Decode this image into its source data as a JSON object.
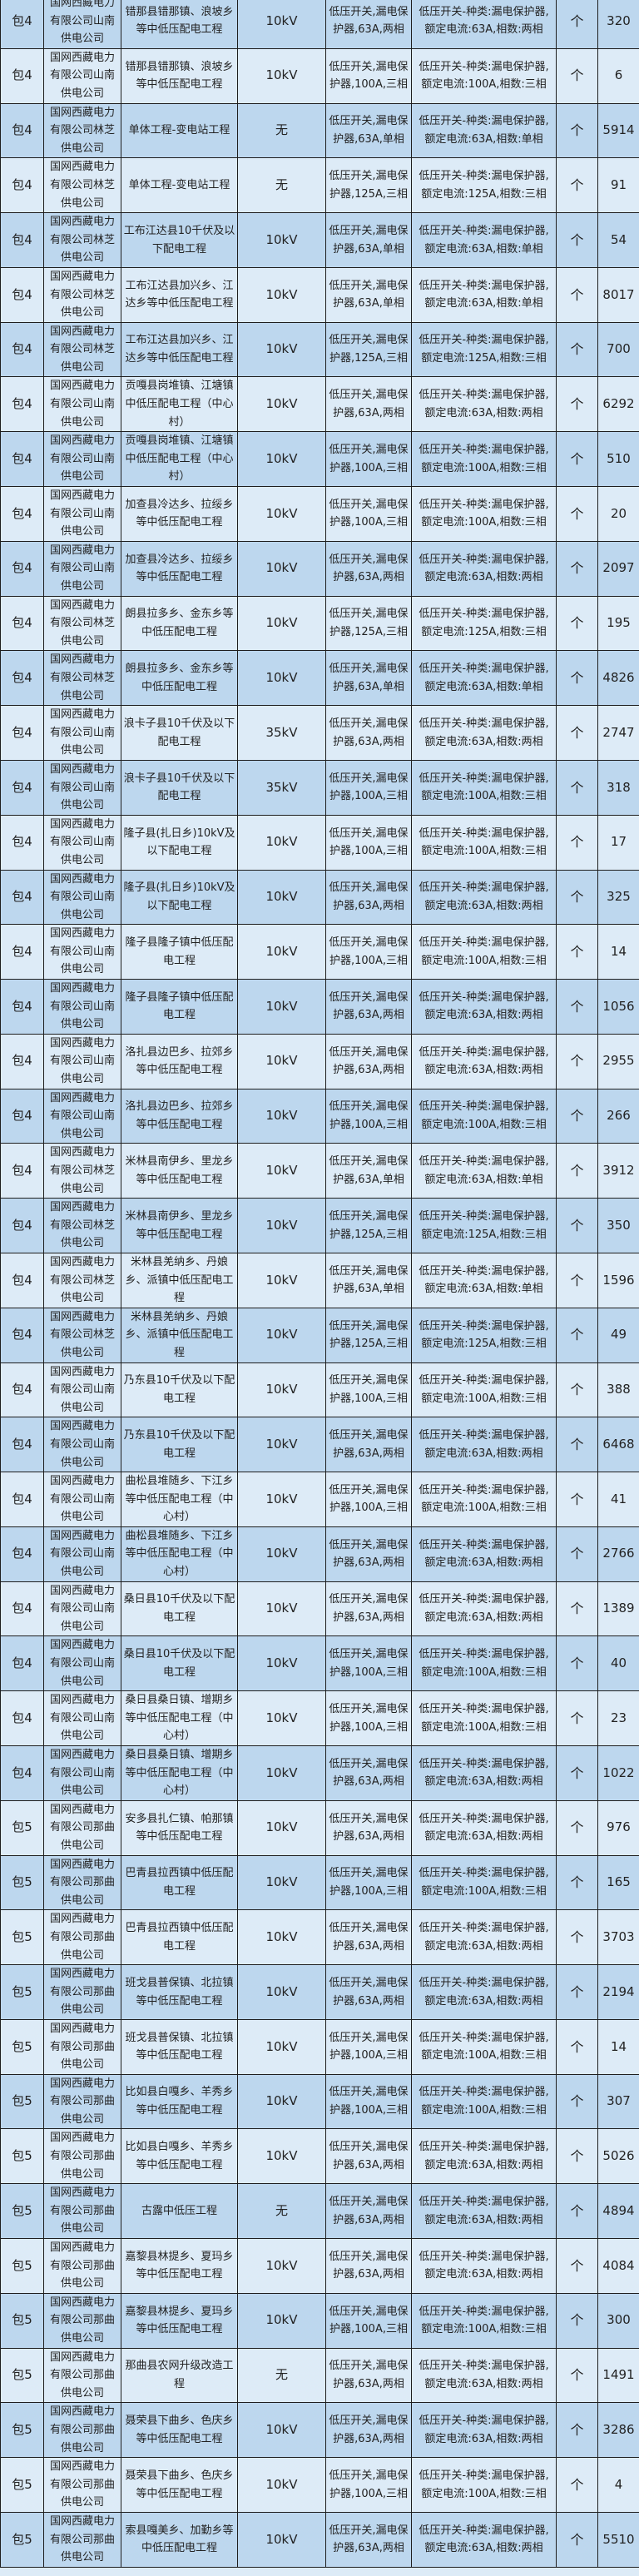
{
  "table": {
    "rows": [
      [
        "包4",
        "国网西藏电力有限公司山南供电公司",
        "错那县错那镇、浪坡乡等中低压配电工程",
        "10kV",
        "低压开关,漏电保护器,63A,两相",
        "低压开关-种类:漏电保护器,额定电流:63A,相数:两相",
        "个",
        "320"
      ],
      [
        "包4",
        "国网西藏电力有限公司山南供电公司",
        "错那县错那镇、浪坡乡等中低压配电工程",
        "10kV",
        "低压开关,漏电保护器,100A,三相",
        "低压开关-种类:漏电保护器,额定电流:100A,相数:三相",
        "个",
        "6"
      ],
      [
        "包4",
        "国网西藏电力有限公司林芝供电公司",
        "单体工程-变电站工程",
        "无",
        "低压开关,漏电保护器,63A,单相",
        "低压开关-种类:漏电保护器,额定电流:63A,相数:单相",
        "个",
        "5914"
      ],
      [
        "包4",
        "国网西藏电力有限公司林芝供电公司",
        "单体工程-变电站工程",
        "无",
        "低压开关,漏电保护器,125A,三相",
        "低压开关-种类:漏电保护器,额定电流:125A,相数:三相",
        "个",
        "91"
      ],
      [
        "包4",
        "国网西藏电力有限公司林芝供电公司",
        "工布江达县10千伏及以下配电工程",
        "10kV",
        "低压开关,漏电保护器,63A,单相",
        "低压开关-种类:漏电保护器,额定电流:63A,相数:单相",
        "个",
        "54"
      ],
      [
        "包4",
        "国网西藏电力有限公司林芝供电公司",
        "工布江达县加兴乡、江达乡等中低压配电工程",
        "10kV",
        "低压开关,漏电保护器,63A,单相",
        "低压开关-种类:漏电保护器,额定电流:63A,相数:单相",
        "个",
        "8017"
      ],
      [
        "包4",
        "国网西藏电力有限公司林芝供电公司",
        "工布江达县加兴乡、江达乡等中低压配电工程",
        "10kV",
        "低压开关,漏电保护器,125A,三相",
        "低压开关-种类:漏电保护器,额定电流:125A,相数:三相",
        "个",
        "700"
      ],
      [
        "包4",
        "国网西藏电力有限公司山南供电公司",
        "贡嘎县岗堆镇、江塘镇中低压配电工程（中心村）",
        "10kV",
        "低压开关,漏电保护器,63A,两相",
        "低压开关-种类:漏电保护器,额定电流:63A,相数:两相",
        "个",
        "6292"
      ],
      [
        "包4",
        "国网西藏电力有限公司山南供电公司",
        "贡嘎县岗堆镇、江塘镇中低压配电工程（中心村）",
        "10kV",
        "低压开关,漏电保护器,100A,三相",
        "低压开关-种类:漏电保护器,额定电流:100A,相数:三相",
        "个",
        "510"
      ],
      [
        "包4",
        "国网西藏电力有限公司山南供电公司",
        "加查县冷达乡、拉绥乡等中低压配电工程",
        "10kV",
        "低压开关,漏电保护器,100A,三相",
        "低压开关-种类:漏电保护器,额定电流:100A,相数:三相",
        "个",
        "20"
      ],
      [
        "包4",
        "国网西藏电力有限公司山南供电公司",
        "加查县冷达乡、拉绥乡等中低压配电工程",
        "10kV",
        "低压开关,漏电保护器,63A,两相",
        "低压开关-种类:漏电保护器,额定电流:63A,相数:两相",
        "个",
        "2097"
      ],
      [
        "包4",
        "国网西藏电力有限公司林芝供电公司",
        "朗县拉多乡、金东乡等中低压配电工程",
        "10kV",
        "低压开关,漏电保护器,125A,三相",
        "低压开关-种类:漏电保护器,额定电流:125A,相数:三相",
        "个",
        "195"
      ],
      [
        "包4",
        "国网西藏电力有限公司林芝供电公司",
        "朗县拉多乡、金东乡等中低压配电工程",
        "10kV",
        "低压开关,漏电保护器,63A,单相",
        "低压开关-种类:漏电保护器,额定电流:63A,相数:单相",
        "个",
        "4826"
      ],
      [
        "包4",
        "国网西藏电力有限公司山南供电公司",
        "浪卡子县10千伏及以下配电工程",
        "35kV",
        "低压开关,漏电保护器,63A,两相",
        "低压开关-种类:漏电保护器,额定电流:63A,相数:两相",
        "个",
        "2747"
      ],
      [
        "包4",
        "国网西藏电力有限公司山南供电公司",
        "浪卡子县10千伏及以下配电工程",
        "35kV",
        "低压开关,漏电保护器,100A,三相",
        "低压开关-种类:漏电保护器,额定电流:100A,相数:三相",
        "个",
        "318"
      ],
      [
        "包4",
        "国网西藏电力有限公司山南供电公司",
        "隆子县(扎日乡)10kV及以下配电工程",
        "10kV",
        "低压开关,漏电保护器,100A,三相",
        "低压开关-种类:漏电保护器,额定电流:100A,相数:三相",
        "个",
        "17"
      ],
      [
        "包4",
        "国网西藏电力有限公司山南供电公司",
        "隆子县(扎日乡)10kV及以下配电工程",
        "10kV",
        "低压开关,漏电保护器,63A,两相",
        "低压开关-种类:漏电保护器,额定电流:63A,相数:两相",
        "个",
        "325"
      ],
      [
        "包4",
        "国网西藏电力有限公司山南供电公司",
        "隆子县隆子镇中低压配电工程",
        "10kV",
        "低压开关,漏电保护器,100A,三相",
        "低压开关-种类:漏电保护器,额定电流:100A,相数:三相",
        "个",
        "14"
      ],
      [
        "包4",
        "国网西藏电力有限公司山南供电公司",
        "隆子县隆子镇中低压配电工程",
        "10kV",
        "低压开关,漏电保护器,63A,两相",
        "低压开关-种类:漏电保护器,额定电流:63A,相数:两相",
        "个",
        "1056"
      ],
      [
        "包4",
        "国网西藏电力有限公司山南供电公司",
        "洛扎县边巴乡、拉郊乡等中低压配电工程",
        "10kV",
        "低压开关,漏电保护器,63A,两相",
        "低压开关-种类:漏电保护器,额定电流:63A,相数:两相",
        "个",
        "2955"
      ],
      [
        "包4",
        "国网西藏电力有限公司山南供电公司",
        "洛扎县边巴乡、拉郊乡等中低压配电工程",
        "10kV",
        "低压开关,漏电保护器,100A,三相",
        "低压开关-种类:漏电保护器,额定电流:100A,相数:三相",
        "个",
        "266"
      ],
      [
        "包4",
        "国网西藏电力有限公司林芝供电公司",
        "米林县南伊乡、里龙乡等中低压配电工程",
        "10kV",
        "低压开关,漏电保护器,63A,单相",
        "低压开关-种类:漏电保护器,额定电流:63A,相数:单相",
        "个",
        "3912"
      ],
      [
        "包4",
        "国网西藏电力有限公司林芝供电公司",
        "米林县南伊乡、里龙乡等中低压配电工程",
        "10kV",
        "低压开关,漏电保护器,125A,三相",
        "低压开关-种类:漏电保护器,额定电流:125A,相数:三相",
        "个",
        "350"
      ],
      [
        "包4",
        "国网西藏电力有限公司林芝供电公司",
        "米林县羌纳乡、丹娘乡、派镇中低压配电工程",
        "10kV",
        "低压开关,漏电保护器,63A,单相",
        "低压开关-种类:漏电保护器,额定电流:63A,相数:单相",
        "个",
        "1596"
      ],
      [
        "包4",
        "国网西藏电力有限公司林芝供电公司",
        "米林县羌纳乡、丹娘乡、派镇中低压配电工程",
        "10kV",
        "低压开关,漏电保护器,125A,三相",
        "低压开关-种类:漏电保护器,额定电流:125A,相数:三相",
        "个",
        "49"
      ],
      [
        "包4",
        "国网西藏电力有限公司山南供电公司",
        "乃东县10千伏及以下配电工程",
        "10kV",
        "低压开关,漏电保护器,100A,三相",
        "低压开关-种类:漏电保护器,额定电流:100A,相数:三相",
        "个",
        "388"
      ],
      [
        "包4",
        "国网西藏电力有限公司山南供电公司",
        "乃东县10千伏及以下配电工程",
        "10kV",
        "低压开关,漏电保护器,63A,两相",
        "低压开关-种类:漏电保护器,额定电流:63A,相数:两相",
        "个",
        "6468"
      ],
      [
        "包4",
        "国网西藏电力有限公司山南供电公司",
        "曲松县堆随乡、下江乡等中低压配电工程（中心村）",
        "10kV",
        "低压开关,漏电保护器,100A,三相",
        "低压开关-种类:漏电保护器,额定电流:100A,相数:三相",
        "个",
        "41"
      ],
      [
        "包4",
        "国网西藏电力有限公司山南供电公司",
        "曲松县堆随乡、下江乡等中低压配电工程（中心村）",
        "10kV",
        "低压开关,漏电保护器,63A,两相",
        "低压开关-种类:漏电保护器,额定电流:63A,相数:两相",
        "个",
        "2766"
      ],
      [
        "包4",
        "国网西藏电力有限公司山南供电公司",
        "桑日县10千伏及以下配电工程",
        "10kV",
        "低压开关,漏电保护器,63A,两相",
        "低压开关-种类:漏电保护器,额定电流:63A,相数:两相",
        "个",
        "1389"
      ],
      [
        "包4",
        "国网西藏电力有限公司山南供电公司",
        "桑日县10千伏及以下配电工程",
        "10kV",
        "低压开关,漏电保护器,100A,三相",
        "低压开关-种类:漏电保护器,额定电流:100A,相数:三相",
        "个",
        "40"
      ],
      [
        "包4",
        "国网西藏电力有限公司山南供电公司",
        "桑日县桑日镇、增期乡等中低压配电工程（中心村）",
        "10kV",
        "低压开关,漏电保护器,100A,三相",
        "低压开关-种类:漏电保护器,额定电流:100A,相数:三相",
        "个",
        "23"
      ],
      [
        "包4",
        "国网西藏电力有限公司山南供电公司",
        "桑日县桑日镇、增期乡等中低压配电工程（中心村）",
        "10kV",
        "低压开关,漏电保护器,63A,两相",
        "低压开关-种类:漏电保护器,额定电流:63A,相数:两相",
        "个",
        "1022"
      ],
      [
        "包5",
        "国网西藏电力有限公司那曲供电公司",
        "安多县扎仁镇、帕那镇等中低压配电工程",
        "10kV",
        "低压开关,漏电保护器,63A,两相",
        "低压开关-种类:漏电保护器,额定电流:63A,相数:两相",
        "个",
        "976"
      ],
      [
        "包5",
        "国网西藏电力有限公司那曲供电公司",
        "巴青县拉西镇中低压配电工程",
        "10kV",
        "低压开关,漏电保护器,100A,三相",
        "低压开关-种类:漏电保护器,额定电流:100A,相数:三相",
        "个",
        "165"
      ],
      [
        "包5",
        "国网西藏电力有限公司那曲供电公司",
        "巴青县拉西镇中低压配电工程",
        "10kV",
        "低压开关,漏电保护器,63A,两相",
        "低压开关-种类:漏电保护器,额定电流:63A,相数:两相",
        "个",
        "3703"
      ],
      [
        "包5",
        "国网西藏电力有限公司那曲供电公司",
        "班戈县普保镇、北拉镇等中低压配电工程",
        "10kV",
        "低压开关,漏电保护器,63A,两相",
        "低压开关-种类:漏电保护器,额定电流:63A,相数:两相",
        "个",
        "2194"
      ],
      [
        "包5",
        "国网西藏电力有限公司那曲供电公司",
        "班戈县普保镇、北拉镇等中低压配电工程",
        "10kV",
        "低压开关,漏电保护器,100A,三相",
        "低压开关-种类:漏电保护器,额定电流:100A,相数:三相",
        "个",
        "14"
      ],
      [
        "包5",
        "国网西藏电力有限公司那曲供电公司",
        "比如县白嘎乡、羊秀乡等中低压配电工程",
        "10kV",
        "低压开关,漏电保护器,100A,三相",
        "低压开关-种类:漏电保护器,额定电流:100A,相数:三相",
        "个",
        "307"
      ],
      [
        "包5",
        "国网西藏电力有限公司那曲供电公司",
        "比如县白嘎乡、羊秀乡等中低压配电工程",
        "10kV",
        "低压开关,漏电保护器,63A,两相",
        "低压开关-种类:漏电保护器,额定电流:63A,相数:两相",
        "个",
        "5026"
      ],
      [
        "包5",
        "国网西藏电力有限公司那曲供电公司",
        "古露中低压工程",
        "无",
        "低压开关,漏电保护器,63A,两相",
        "低压开关-种类:漏电保护器,额定电流:63A,相数:两相",
        "个",
        "4894"
      ],
      [
        "包5",
        "国网西藏电力有限公司那曲供电公司",
        "嘉黎县林提乡、夏玛乡等中低压配电工程",
        "10kV",
        "低压开关,漏电保护器,63A,两相",
        "低压开关-种类:漏电保护器,额定电流:63A,相数:两相",
        "个",
        "4084"
      ],
      [
        "包5",
        "国网西藏电力有限公司那曲供电公司",
        "嘉黎县林提乡、夏玛乡等中低压配电工程",
        "10kV",
        "低压开关,漏电保护器,100A,三相",
        "低压开关-种类:漏电保护器,额定电流:100A,相数:三相",
        "个",
        "300"
      ],
      [
        "包5",
        "国网西藏电力有限公司那曲供电公司",
        "那曲县农网升级改造工程",
        "无",
        "低压开关,漏电保护器,63A,两相",
        "低压开关-种类:漏电保护器,额定电流:63A,相数:两相",
        "个",
        "1491"
      ],
      [
        "包5",
        "国网西藏电力有限公司那曲供电公司",
        "聂荣县下曲乡、色庆乡等中低压配电工程",
        "10kV",
        "低压开关,漏电保护器,63A,两相",
        "低压开关-种类:漏电保护器,额定电流:63A,相数:两相",
        "个",
        "3286"
      ],
      [
        "包5",
        "国网西藏电力有限公司那曲供电公司",
        "聂荣县下曲乡、色庆乡等中低压配电工程",
        "10kV",
        "低压开关,漏电保护器,100A,三相",
        "低压开关-种类:漏电保护器,额定电流:100A,相数:三相",
        "个",
        "4"
      ],
      [
        "包5",
        "国网西藏电力有限公司那曲供电公司",
        "索县嘎美乡、加勤乡等中低压配电工程",
        "10kV",
        "低压开关,漏电保护器,63A,两相",
        "低压开关-种类:漏电保护器,额定电流:63A,相数:两相",
        "个",
        "5510"
      ]
    ]
  },
  "colors": {
    "row_dark": "#bdd7ee",
    "row_light": "#ddebf7",
    "border": "#1e1e1e"
  }
}
